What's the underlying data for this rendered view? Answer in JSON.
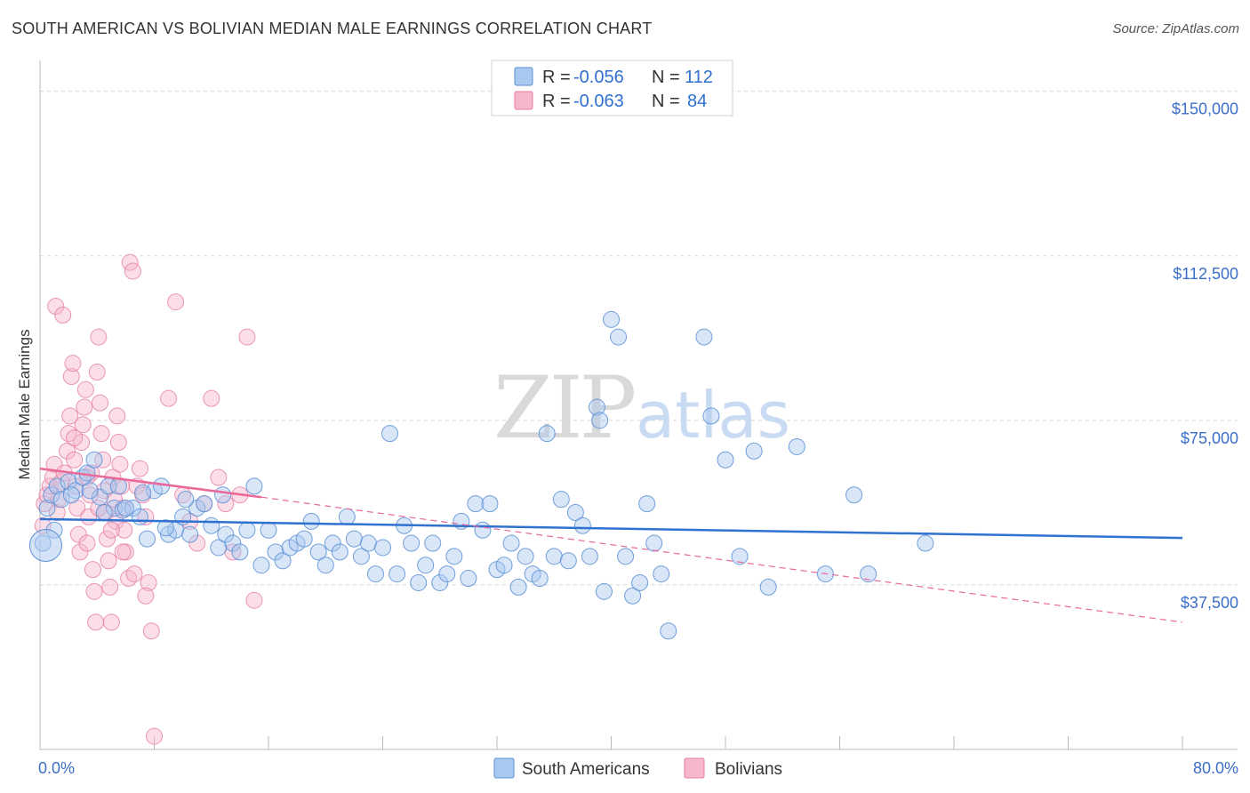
{
  "chart_data": {
    "type": "scatter",
    "title": "SOUTH AMERICAN VS BOLIVIAN MEDIAN MALE EARNINGS CORRELATION CHART",
    "source": "Source: ZipAtlas.com",
    "ylabel": "Median Male Earnings",
    "xlabel": "",
    "xlim": [
      0,
      80
    ],
    "ylim": [
      0,
      155000
    ],
    "x_tick_labels": {
      "left": "0.0%",
      "right": "80.0%"
    },
    "y_ticks": [
      {
        "value": 150000,
        "label": "$150,000"
      },
      {
        "value": 112500,
        "label": "$112,500"
      },
      {
        "value": 75000,
        "label": "$75,000"
      },
      {
        "value": 37500,
        "label": "$37,500"
      }
    ],
    "watermark": "ZIPatlas",
    "legend": [
      {
        "r_label": "R = ",
        "r_value": "-0.056",
        "n_label": "N = ",
        "n_value": "112"
      },
      {
        "r_label": "R = ",
        "r_value": "-0.063",
        "n_label": "N = ",
        "n_value": "84"
      }
    ],
    "colors": {
      "blue_fill": "#a9c8f0",
      "blue_stroke": "#5b8fd6",
      "blue_line": "#2f72cf",
      "pink_fill": "#f6b6cb",
      "pink_stroke": "#e57ea2",
      "pink_line": "#e8699a",
      "axis_text": "#3b6fc9",
      "grid": "#d8d8d8"
    },
    "series": [
      {
        "name": "South Americans",
        "trend": {
          "x0": 0,
          "y0": 52500,
          "x1": 80,
          "y1": 48200
        },
        "points": [
          [
            0.2,
            47000
          ],
          [
            0.5,
            55000
          ],
          [
            0.8,
            58000
          ],
          [
            1.2,
            60000
          ],
          [
            1.5,
            57000
          ],
          [
            2.0,
            61000
          ],
          [
            2.5,
            59000
          ],
          [
            3.0,
            62000
          ],
          [
            3.3,
            63000
          ],
          [
            3.8,
            66000
          ],
          [
            4.2,
            57500
          ],
          [
            4.8,
            60000
          ],
          [
            5.2,
            55000
          ],
          [
            5.8,
            54500
          ],
          [
            6.5,
            55000
          ],
          [
            7.0,
            53000
          ],
          [
            7.5,
            48000
          ],
          [
            8.0,
            59000
          ],
          [
            8.5,
            60000
          ],
          [
            9.0,
            49000
          ],
          [
            9.5,
            50000
          ],
          [
            10.0,
            53000
          ],
          [
            10.5,
            49000
          ],
          [
            11.0,
            55000
          ],
          [
            11.5,
            56000
          ],
          [
            12.0,
            51000
          ],
          [
            12.5,
            46000
          ],
          [
            13.0,
            49000
          ],
          [
            13.5,
            47000
          ],
          [
            14.0,
            45000
          ],
          [
            14.5,
            50000
          ],
          [
            15.0,
            60000
          ],
          [
            15.5,
            42000
          ],
          [
            16.0,
            50000
          ],
          [
            16.5,
            45000
          ],
          [
            17.0,
            43000
          ],
          [
            17.5,
            46000
          ],
          [
            18.0,
            47000
          ],
          [
            18.5,
            48000
          ],
          [
            19.0,
            52000
          ],
          [
            19.5,
            45000
          ],
          [
            20.0,
            42000
          ],
          [
            20.5,
            47000
          ],
          [
            21.0,
            45000
          ],
          [
            21.5,
            53000
          ],
          [
            22.0,
            48000
          ],
          [
            22.5,
            44000
          ],
          [
            23.0,
            47000
          ],
          [
            23.5,
            40000
          ],
          [
            24.0,
            46000
          ],
          [
            24.5,
            72000
          ],
          [
            25.0,
            40000
          ],
          [
            25.5,
            51000
          ],
          [
            26.0,
            47000
          ],
          [
            26.5,
            38000
          ],
          [
            27.0,
            42000
          ],
          [
            27.5,
            47000
          ],
          [
            28.0,
            38000
          ],
          [
            28.5,
            40000
          ],
          [
            29.0,
            44000
          ],
          [
            29.5,
            52000
          ],
          [
            30.0,
            39000
          ],
          [
            30.5,
            56000
          ],
          [
            31.0,
            50000
          ],
          [
            31.5,
            56000
          ],
          [
            32.0,
            41000
          ],
          [
            32.5,
            42000
          ],
          [
            33.0,
            47000
          ],
          [
            33.5,
            37000
          ],
          [
            34.0,
            44000
          ],
          [
            34.5,
            40000
          ],
          [
            35.0,
            39000
          ],
          [
            35.5,
            72000
          ],
          [
            36.0,
            44000
          ],
          [
            36.5,
            57000
          ],
          [
            37.0,
            43000
          ],
          [
            37.5,
            54000
          ],
          [
            38.0,
            51000
          ],
          [
            38.5,
            44000
          ],
          [
            39.0,
            78000
          ],
          [
            39.2,
            75000
          ],
          [
            39.5,
            36000
          ],
          [
            40.0,
            98000
          ],
          [
            40.5,
            94000
          ],
          [
            41.0,
            44000
          ],
          [
            41.5,
            35000
          ],
          [
            42.0,
            38000
          ],
          [
            42.5,
            56000
          ],
          [
            43.0,
            47000
          ],
          [
            43.5,
            40000
          ],
          [
            44.0,
            27000
          ],
          [
            46.5,
            94000
          ],
          [
            47.0,
            76000
          ],
          [
            48.0,
            66000
          ],
          [
            49.0,
            44000
          ],
          [
            50.0,
            68000
          ],
          [
            51.0,
            37000
          ],
          [
            53.0,
            69000
          ],
          [
            55.0,
            40000
          ],
          [
            57.0,
            58000
          ],
          [
            58.0,
            40000
          ],
          [
            62.0,
            47000
          ],
          [
            3.5,
            59000
          ],
          [
            2.2,
            58000
          ],
          [
            1.0,
            50000
          ],
          [
            4.5,
            54000
          ],
          [
            5.5,
            60000
          ],
          [
            6.0,
            55000
          ],
          [
            7.2,
            58500
          ],
          [
            8.8,
            50500
          ],
          [
            10.2,
            57000
          ],
          [
            12.8,
            58000
          ]
        ]
      },
      {
        "name": "Bolivians",
        "trend": {
          "x0": 0,
          "y0": 64000,
          "x1": 15.5,
          "y1": 57500,
          "dash_x1": 80,
          "dash_y1": 29000
        },
        "points": [
          [
            0.2,
            51000
          ],
          [
            0.3,
            56000
          ],
          [
            0.5,
            58000
          ],
          [
            0.7,
            60000
          ],
          [
            0.9,
            62000
          ],
          [
            1.0,
            65000
          ],
          [
            1.2,
            54000
          ],
          [
            1.3,
            57000
          ],
          [
            1.5,
            61000
          ],
          [
            1.7,
            63000
          ],
          [
            1.9,
            68000
          ],
          [
            2.0,
            72000
          ],
          [
            2.1,
            76000
          ],
          [
            2.2,
            85000
          ],
          [
            2.3,
            88000
          ],
          [
            2.4,
            66000
          ],
          [
            2.5,
            60000
          ],
          [
            2.6,
            55000
          ],
          [
            2.7,
            49000
          ],
          [
            2.8,
            45000
          ],
          [
            2.9,
            70000
          ],
          [
            3.0,
            74000
          ],
          [
            3.1,
            78000
          ],
          [
            3.2,
            82000
          ],
          [
            3.3,
            47000
          ],
          [
            3.4,
            53000
          ],
          [
            3.5,
            58000
          ],
          [
            3.6,
            63000
          ],
          [
            3.7,
            41000
          ],
          [
            3.8,
            36000
          ],
          [
            3.9,
            29000
          ],
          [
            4.0,
            86000
          ],
          [
            4.1,
            94000
          ],
          [
            4.2,
            79000
          ],
          [
            4.3,
            72000
          ],
          [
            4.4,
            66000
          ],
          [
            4.5,
            59000
          ],
          [
            4.6,
            54000
          ],
          [
            4.7,
            48000
          ],
          [
            4.8,
            43000
          ],
          [
            4.9,
            37000
          ],
          [
            5.0,
            29000
          ],
          [
            5.1,
            62000
          ],
          [
            5.2,
            57000
          ],
          [
            5.3,
            52000
          ],
          [
            5.4,
            76000
          ],
          [
            5.5,
            70000
          ],
          [
            5.6,
            65000
          ],
          [
            5.7,
            60000
          ],
          [
            5.8,
            55000
          ],
          [
            5.9,
            50000
          ],
          [
            6.0,
            45000
          ],
          [
            6.2,
            39000
          ],
          [
            6.3,
            111000
          ],
          [
            6.5,
            109000
          ],
          [
            6.8,
            60000
          ],
          [
            7.0,
            64000
          ],
          [
            7.2,
            58000
          ],
          [
            7.4,
            53000
          ],
          [
            7.6,
            38000
          ],
          [
            7.8,
            27000
          ],
          [
            8.0,
            3000
          ],
          [
            9.0,
            80000
          ],
          [
            9.5,
            102000
          ],
          [
            10.0,
            58000
          ],
          [
            10.5,
            52000
          ],
          [
            11.0,
            47000
          ],
          [
            11.5,
            56000
          ],
          [
            12.0,
            80000
          ],
          [
            12.5,
            62000
          ],
          [
            13.0,
            56000
          ],
          [
            13.5,
            45000
          ],
          [
            14.0,
            58000
          ],
          [
            14.5,
            94000
          ],
          [
            15.0,
            34000
          ],
          [
            1.1,
            101000
          ],
          [
            1.6,
            99000
          ],
          [
            2.4,
            71000
          ],
          [
            3.3,
            62000
          ],
          [
            4.1,
            55000
          ],
          [
            5.0,
            50000
          ],
          [
            5.8,
            45000
          ],
          [
            6.6,
            40000
          ],
          [
            7.4,
            35000
          ]
        ]
      }
    ]
  }
}
